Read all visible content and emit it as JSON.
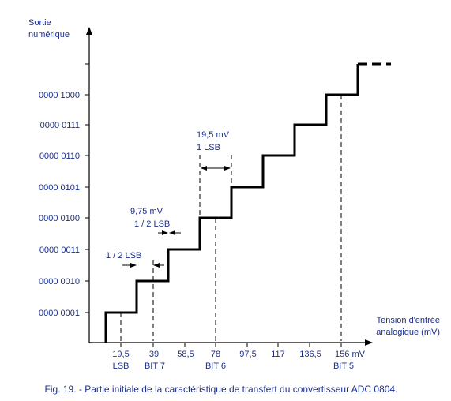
{
  "axes": {
    "y_title_line1": "Sortie",
    "y_title_line2": "numérique",
    "x_title_line1": "Tension d'entrée",
    "x_title_line2": "analogique (mV)"
  },
  "y_codes": [
    "0000 0001",
    "0000 0010",
    "0000 0011",
    "0000 0100",
    "0000 0101",
    "0000 0110",
    "0000 0111",
    "0000 1000"
  ],
  "x_ticks": [
    "19,5",
    "39",
    "58,5",
    "78",
    "97,5",
    "117",
    "136,5",
    "156 mV"
  ],
  "x_sublabels": [
    "LSB",
    "BIT 7",
    "BIT 6",
    "BIT 5"
  ],
  "annotations": {
    "half_lsb": "1 / 2 LSB",
    "half_lsb_value": "9,75 mV",
    "half_lsb_2": "1 / 2 LSB",
    "one_lsb_value": "19,5 mV",
    "one_lsb": "1 LSB"
  },
  "caption": "Fig. 19. - Partie initiale de la caractéristique de transfert du convertisseur ADC 0804.",
  "chart_data": {
    "type": "line",
    "title": "",
    "xlabel": "Tension d'entrée analogique (mV)",
    "ylabel": "Sortie numérique",
    "x": [
      9.75,
      29.25,
      48.75,
      68.25,
      87.75,
      107.25,
      126.75,
      146.25
    ],
    "y": [
      1,
      2,
      3,
      4,
      5,
      6,
      7,
      8
    ],
    "step_width_mV": 19.5,
    "first_transition_mV": 9.75
  }
}
